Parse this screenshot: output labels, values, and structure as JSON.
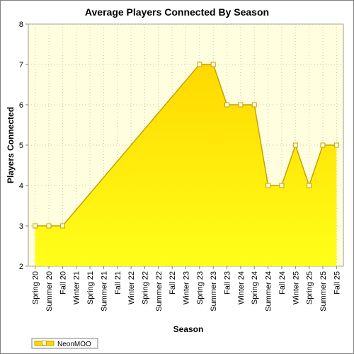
{
  "chart_data": {
    "type": "area",
    "title": "Average Players Connected By Season",
    "xlabel": "Season",
    "ylabel": "Players Connected",
    "categories": [
      "Spring 20",
      "Summer 20",
      "Fall 20",
      "Winter 21",
      "Spring 21",
      "Summer 21",
      "Fall 21",
      "Winter 22",
      "Spring 22",
      "Summer 22",
      "Fall 22",
      "Winter 23",
      "Spring 23",
      "Summer 23",
      "Fall 23",
      "Winter 24",
      "Spring 24",
      "Summer 24",
      "Fall 24",
      "Winter 25",
      "Spring 25",
      "Summer 25",
      "Fall 25"
    ],
    "series": [
      {
        "name": "NeonMOO",
        "points": [
          {
            "x": "Spring 20",
            "y": 3
          },
          {
            "x": "Summer 20",
            "y": 3
          },
          {
            "x": "Fall 20",
            "y": 3
          },
          {
            "x": "Spring 23",
            "y": 7
          },
          {
            "x": "Summer 23",
            "y": 7
          },
          {
            "x": "Fall 23",
            "y": 6
          },
          {
            "x": "Winter 24",
            "y": 6
          },
          {
            "x": "Spring 24",
            "y": 6
          },
          {
            "x": "Summer 24",
            "y": 4
          },
          {
            "x": "Fall 24",
            "y": 4
          },
          {
            "x": "Winter 25",
            "y": 5
          },
          {
            "x": "Spring 25",
            "y": 4
          },
          {
            "x": "Summer 25",
            "y": 5
          },
          {
            "x": "Fall 25",
            "y": 5
          }
        ]
      }
    ],
    "ylim": [
      2,
      8
    ],
    "yticks": [
      "2",
      "3",
      "4",
      "5",
      "6",
      "7",
      "8"
    ],
    "grid": true,
    "legend_position": "bottom-left",
    "colors": {
      "area_top": "#ffd800",
      "area_bottom": "#ffff1a",
      "line": "#c8a000",
      "marker_fill": "#ffffe0",
      "plot_background": "#ffffe0",
      "grid": "#c8c8a0"
    }
  }
}
